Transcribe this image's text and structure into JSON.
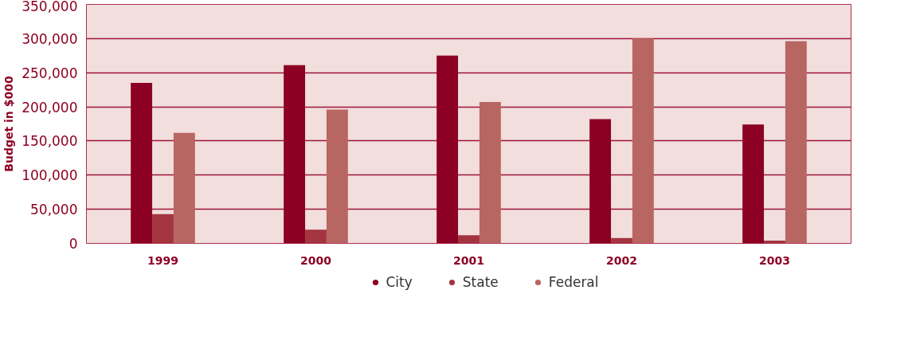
{
  "chart_data": {
    "type": "bar",
    "ylabel": "Budget in $000",
    "categories": [
      "1999",
      "2000",
      "2001",
      "2002",
      "2003"
    ],
    "series": [
      {
        "name": "City",
        "color": "#8c0023",
        "values": [
          235000,
          261000,
          275000,
          182000,
          174000
        ]
      },
      {
        "name": "State",
        "color": "#a33440",
        "values": [
          43000,
          20000,
          12000,
          8000,
          4000
        ]
      },
      {
        "name": "Federal",
        "color": "#b86662",
        "values": [
          162000,
          196000,
          207000,
          300000,
          296000
        ]
      }
    ],
    "ylim": [
      0,
      350000
    ],
    "yticks": [
      {
        "value": 0,
        "label": "0"
      },
      {
        "value": 50000,
        "label": "50,000"
      },
      {
        "value": 100000,
        "label": "100,000"
      },
      {
        "value": 150000,
        "label": "150,000"
      },
      {
        "value": 200000,
        "label": "200,000"
      },
      {
        "value": 250000,
        "label": "250,000"
      },
      {
        "value": 300000,
        "label": "300,000"
      },
      {
        "value": 350000,
        "label": "350,000"
      }
    ],
    "grid": "y",
    "legend": "bottom"
  }
}
